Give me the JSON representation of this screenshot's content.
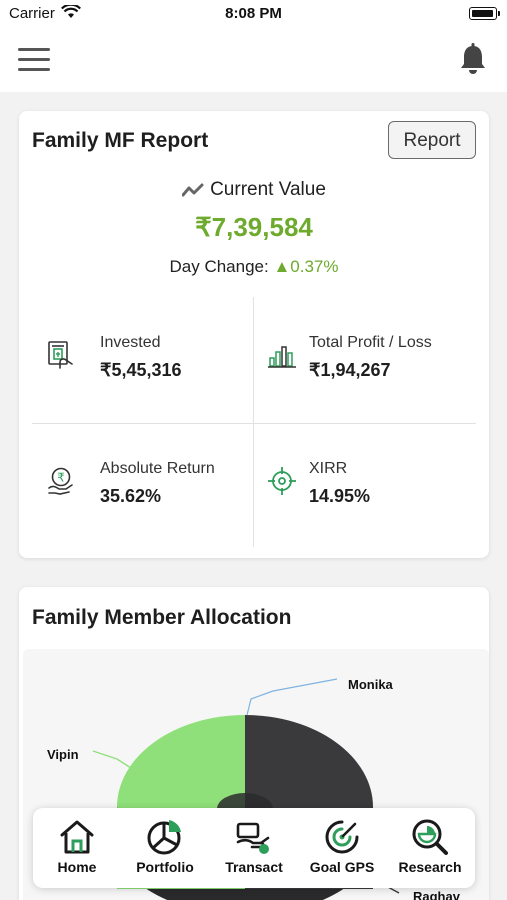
{
  "status_bar": {
    "carrier": "Carrier",
    "time": "8:08 PM"
  },
  "header": {
    "menu_icon": "hamburger-menu-icon",
    "notification_icon": "bell-icon"
  },
  "report_card": {
    "title": "Family MF Report",
    "report_button": "Report",
    "current_value_label": "Current Value",
    "current_value": "₹7,39,584",
    "day_change_label": "Day Change:",
    "day_change_value": "▲0.37%",
    "stats": {
      "invested": {
        "label": "Invested",
        "value": "₹5,45,316",
        "icon": "invested-hand-cash-icon"
      },
      "profit_loss": {
        "label": "Total Profit / Loss",
        "value": "₹1,94,267",
        "icon": "bar-growth-icon"
      },
      "absolute_return": {
        "label": "Absolute Return",
        "value": "35.62%",
        "icon": "rupee-coin-hand-icon"
      },
      "xirr": {
        "label": "XIRR",
        "value": "14.95%",
        "icon": "target-icon"
      }
    }
  },
  "allocation_card": {
    "title": "Family Member Allocation",
    "labels": {
      "monika": "Monika",
      "vipin": "Vipin",
      "raghav": "Raghav"
    }
  },
  "tab_bar": {
    "tabs": [
      {
        "label": "Home",
        "icon": "home-icon"
      },
      {
        "label": "Portfolio",
        "icon": "pie-chart-icon"
      },
      {
        "label": "Transact",
        "icon": "transact-hand-icon"
      },
      {
        "label": "Goal GPS",
        "icon": "goal-gps-icon"
      },
      {
        "label": "Research",
        "icon": "research-magnifier-icon"
      }
    ]
  },
  "colors": {
    "accent_green": "#6eaa2e",
    "icon_green": "#2e9e5b",
    "chart_green": "#8fe07a",
    "chart_dark": "#3a3a3d",
    "chart_darker": "#2a2a2c",
    "leader_blue": "#7fb3e0"
  }
}
